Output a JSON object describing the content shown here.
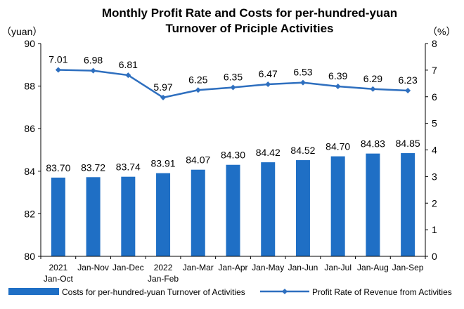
{
  "chart_data": {
    "type": "bar+line",
    "title_lines": [
      "Monthly Profit Rate and Costs for per-hundred-yuan",
      "Turnover of Priciple Activities"
    ],
    "left_axis_unit": "（yuan）",
    "right_axis_unit": "（%）",
    "categories": [
      [
        "2021",
        "Jan-Oct"
      ],
      [
        "Jan-Nov"
      ],
      [
        "Jan-Dec"
      ],
      [
        "2022",
        "Jan-Feb"
      ],
      [
        "Jan-Mar"
      ],
      [
        "Jan-Apr"
      ],
      [
        "Jan-May"
      ],
      [
        "Jan-Jun"
      ],
      [
        "Jan-Jul"
      ],
      [
        "Jan-Aug"
      ],
      [
        "Jan-Sep"
      ]
    ],
    "bar_series": {
      "name": "Costs for per-hundred-yuan Turnover of Activities",
      "values": [
        83.7,
        83.72,
        83.74,
        83.91,
        84.07,
        84.3,
        84.42,
        84.52,
        84.7,
        84.83,
        84.85
      ],
      "labels": [
        "83.70",
        "83.72",
        "83.74",
        "83.91",
        "84.07",
        "84.30",
        "84.42",
        "84.52",
        "84.70",
        "84.83",
        "84.85"
      ],
      "color": "#1f6fc5",
      "axis": "left"
    },
    "line_series": {
      "name": "Profit Rate of Revenue from Activities",
      "values": [
        7.01,
        6.98,
        6.81,
        5.97,
        6.25,
        6.35,
        6.47,
        6.53,
        6.39,
        6.29,
        6.23
      ],
      "labels": [
        "7.01",
        "6.98",
        "6.81",
        "5.97",
        "6.25",
        "6.35",
        "6.47",
        "6.53",
        "6.39",
        "6.29",
        "6.23"
      ],
      "color": "#2e6fbf",
      "axis": "right"
    },
    "left_ylim": [
      80,
      90
    ],
    "left_ticks": [
      80,
      82,
      84,
      86,
      88,
      90
    ],
    "right_ylim": [
      0,
      8
    ],
    "right_ticks": [
      0,
      1,
      2,
      3,
      4,
      5,
      6,
      7,
      8
    ],
    "grid": false,
    "legend_position": "bottom"
  }
}
